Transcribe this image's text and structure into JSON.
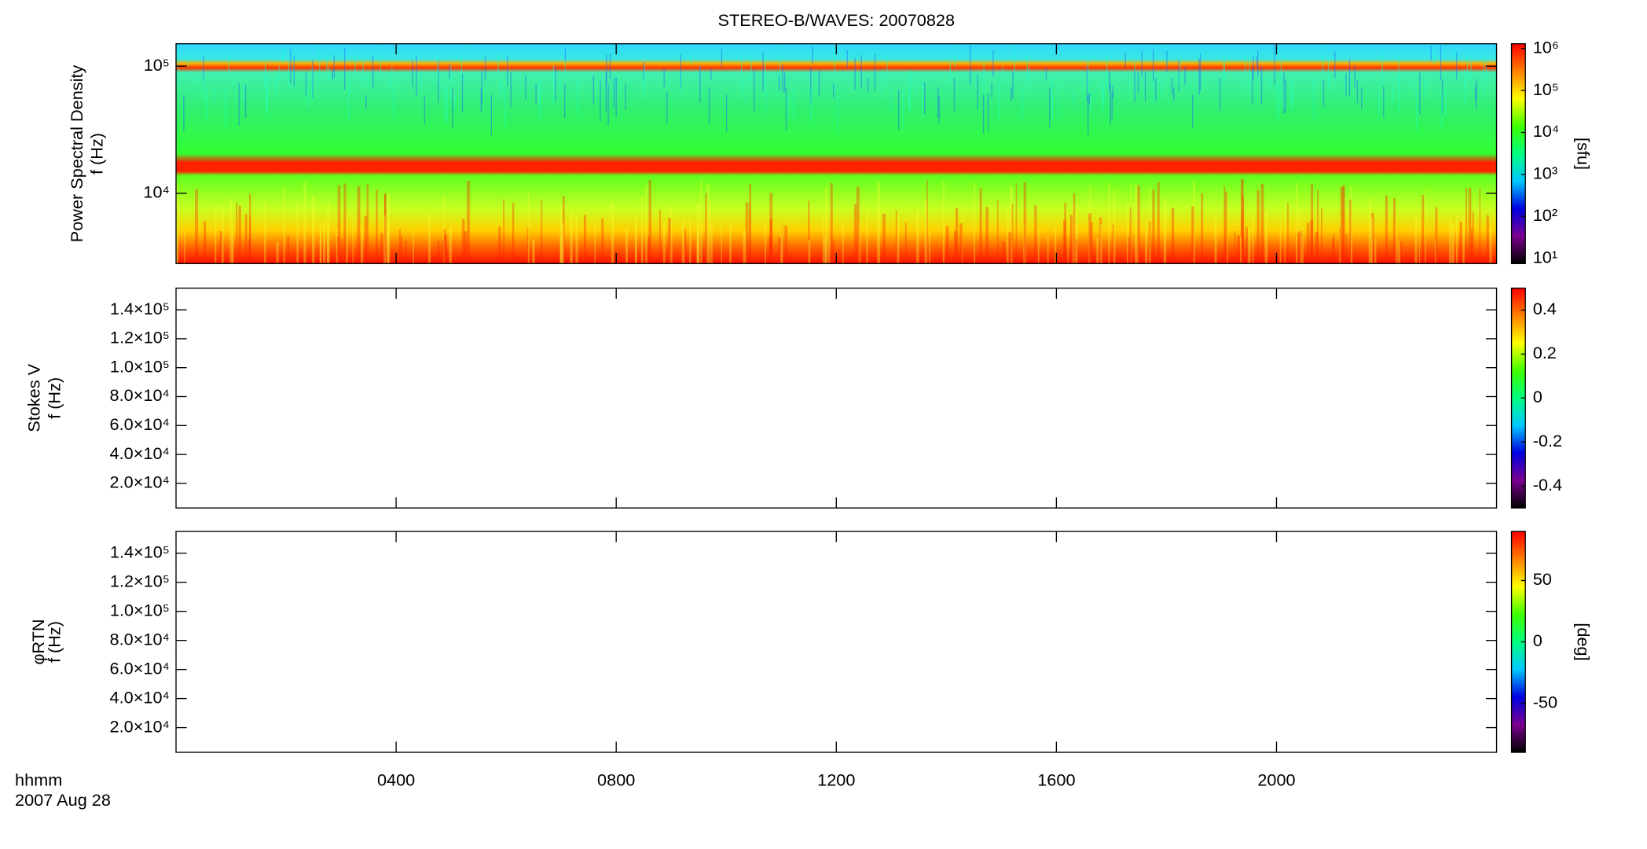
{
  "chart_data": [
    {
      "type": "spectrogram",
      "title": "STEREO-B/WAVES: 20070828",
      "ylabel": [
        "Power Spectral Density",
        "f (Hz)"
      ],
      "ylog": true,
      "ylim": [
        2800,
        150000
      ],
      "yticks": [
        {
          "value": 10000,
          "label": "10⁴"
        },
        {
          "value": 100000,
          "label": "10⁵"
        }
      ],
      "xlim": [
        0,
        24
      ],
      "xticks": [
        {
          "value": 4,
          "label": "0400"
        },
        {
          "value": 8,
          "label": "0800"
        },
        {
          "value": 12,
          "label": "1200"
        },
        {
          "value": 16,
          "label": "1600"
        },
        {
          "value": 20,
          "label": "2000"
        }
      ],
      "colorbar": {
        "log": true,
        "lim": [
          7.5,
          1300000
        ],
        "label": "[sfu]",
        "ticks": [
          {
            "value": 10,
            "label": "10¹"
          },
          {
            "value": 100,
            "label": "10²"
          },
          {
            "value": 1000,
            "label": "10³"
          },
          {
            "value": 10000,
            "label": "10⁴"
          },
          {
            "value": 100000,
            "label": "10⁵"
          },
          {
            "value": 1000000,
            "label": "10⁶"
          }
        ]
      },
      "colormap": [
        "#000000",
        "#7a0090",
        "#0000e0",
        "#00c8ff",
        "#00ff80",
        "#40ff00",
        "#ffff00",
        "#ff8000",
        "#ff0000"
      ]
    },
    {
      "type": "spectrogram",
      "ylabel": [
        "Stokes V",
        "f (Hz)"
      ],
      "ylog": false,
      "ylim": [
        3000,
        155000
      ],
      "yticks": [
        {
          "value": 20000,
          "label": "2.0×10⁴"
        },
        {
          "value": 40000,
          "label": "4.0×10⁴"
        },
        {
          "value": 60000,
          "label": "6.0×10⁴"
        },
        {
          "value": 80000,
          "label": "8.0×10⁴"
        },
        {
          "value": 100000,
          "label": "1.0×10⁵"
        },
        {
          "value": 120000,
          "label": "1.2×10⁵"
        },
        {
          "value": 140000,
          "label": "1.4×10⁵"
        }
      ],
      "xlim": [
        0,
        24
      ],
      "xticks": [
        {
          "value": 4,
          "label": "0400"
        },
        {
          "value": 8,
          "label": "0800"
        },
        {
          "value": 12,
          "label": "1200"
        },
        {
          "value": 16,
          "label": "1600"
        },
        {
          "value": 20,
          "label": "2000"
        }
      ],
      "colorbar": {
        "log": false,
        "lim": [
          -0.5,
          0.5
        ],
        "ticks": [
          -0.4,
          -0.2,
          0.0,
          0.2,
          0.4
        ]
      },
      "colormap": [
        "#000000",
        "#7a0090",
        "#0000e0",
        "#00c8ff",
        "#00ff80",
        "#40ff00",
        "#ffff00",
        "#ff8000",
        "#ff0000"
      ]
    },
    {
      "type": "spectrogram",
      "ylabel": [
        "φRTN",
        "f (Hz)"
      ],
      "ylog": false,
      "ylim": [
        3000,
        155000
      ],
      "yticks": [
        {
          "value": 20000,
          "label": "2.0×10⁴"
        },
        {
          "value": 40000,
          "label": "4.0×10⁴"
        },
        {
          "value": 60000,
          "label": "6.0×10⁴"
        },
        {
          "value": 80000,
          "label": "8.0×10⁴"
        },
        {
          "value": 100000,
          "label": "1.0×10⁵"
        },
        {
          "value": 120000,
          "label": "1.2×10⁵"
        },
        {
          "value": 140000,
          "label": "1.4×10⁵"
        }
      ],
      "xlim": [
        0,
        24
      ],
      "xticks": [
        {
          "value": 4,
          "label": "0400"
        },
        {
          "value": 8,
          "label": "0800"
        },
        {
          "value": 12,
          "label": "1200"
        },
        {
          "value": 16,
          "label": "1600"
        },
        {
          "value": 20,
          "label": "2000"
        }
      ],
      "xlabel": "hhmm",
      "date": "2007 Aug 28",
      "colorbar": {
        "log": false,
        "lim": [
          -90,
          90
        ],
        "label": "[deg]",
        "ticks": [
          -50,
          0,
          50
        ]
      },
      "colormap": [
        "#000000",
        "#7a0090",
        "#0000e0",
        "#00c8ff",
        "#00ff80",
        "#40ff00",
        "#ffff00",
        "#ff8000",
        "#ff0000"
      ]
    }
  ]
}
